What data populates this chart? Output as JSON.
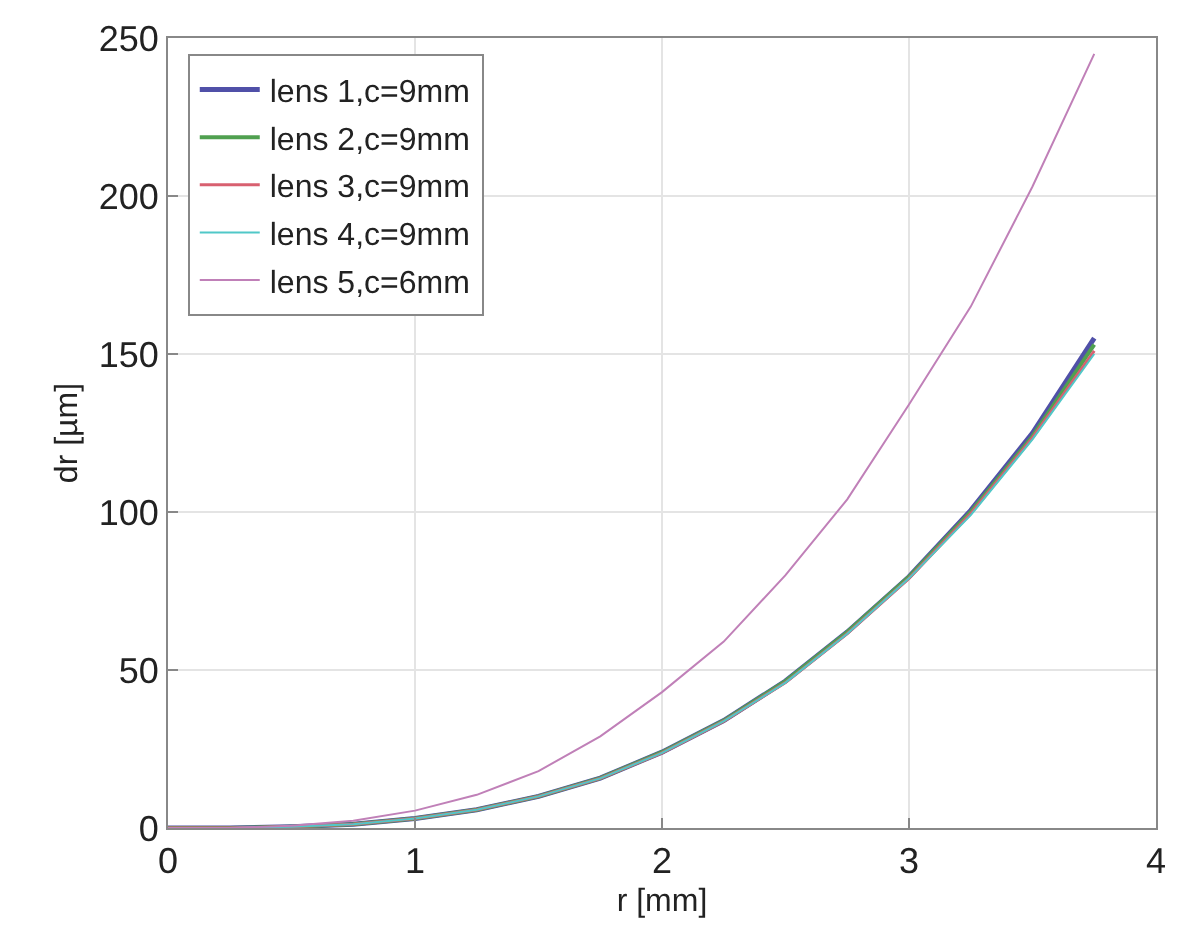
{
  "chart_data": {
    "type": "line",
    "xlabel": "r [mm]",
    "ylabel": "dr [µm]",
    "x": [
      0,
      0.25,
      0.5,
      0.75,
      1,
      1.25,
      1.5,
      1.75,
      2,
      2.25,
      2.5,
      2.75,
      3,
      3.25,
      3.5,
      3.75
    ],
    "series": [
      {
        "name": "lens 1,c=9mm",
        "color": "#5050a8",
        "values": [
          0,
          0,
          0.4,
          1.2,
          3,
          5.8,
          10,
          15.8,
          24,
          34,
          46.5,
          62,
          79.5,
          100.5,
          125,
          155
        ]
      },
      {
        "name": "lens 2,c=9mm",
        "color": "#50a050",
        "values": [
          0,
          0,
          0.4,
          1.2,
          3,
          5.8,
          10,
          15.8,
          24,
          34,
          46.5,
          62,
          79.5,
          100,
          124,
          153
        ]
      },
      {
        "name": "lens 3,c=9mm",
        "color": "#d86070",
        "values": [
          0,
          0,
          0.4,
          1.2,
          3,
          5.8,
          10,
          15.7,
          23.8,
          33.8,
          46,
          61.5,
          79,
          99.5,
          123.5,
          151
        ]
      },
      {
        "name": "lens 4,c=9mm",
        "color": "#50c8c8",
        "values": [
          0,
          0,
          0.4,
          1.2,
          3,
          5.8,
          10,
          15.7,
          23.8,
          33.8,
          46,
          61.5,
          79,
          99,
          123,
          150
        ]
      },
      {
        "name": "lens 5,c=6mm",
        "color": "#c080b8",
        "values": [
          0,
          0,
          0.7,
          2.3,
          5.5,
          10.5,
          18,
          29,
          43,
          59,
          80,
          104,
          134,
          165,
          203,
          245
        ]
      }
    ],
    "xlim": [
      0,
      4
    ],
    "xticks": [
      0,
      1,
      2,
      3,
      4
    ],
    "ylim": [
      0,
      250
    ],
    "yticks": [
      0,
      50,
      100,
      150,
      200,
      250
    ],
    "grid": true,
    "legend": "top left",
    "marker": "none",
    "line_style": "solid"
  }
}
